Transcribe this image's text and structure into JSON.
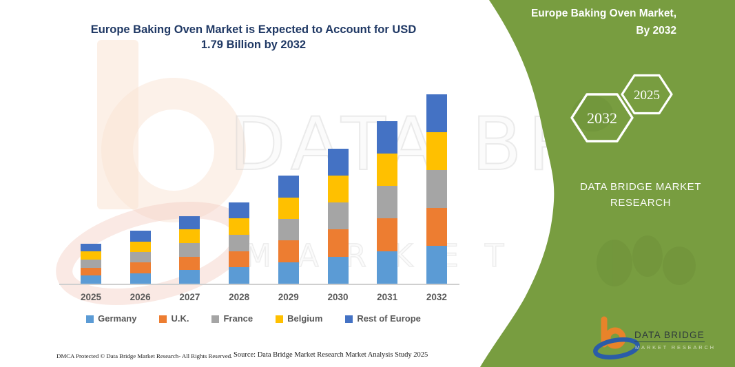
{
  "header": {
    "title_line1": "Europe Baking Oven Market is Expected to Account for USD",
    "title_line2": "1.79 Billion by 2032"
  },
  "watermark": {
    "big_text": "DATA BRIDGE",
    "sub_text": "MARKET RESEARCH"
  },
  "chart_data": {
    "type": "bar",
    "stacked": true,
    "title": "Europe Baking Oven Market is Expected to Account for USD 1.79 Billion by 2032",
    "unit": "USD Billion",
    "categories": [
      "2025",
      "2026",
      "2027",
      "2028",
      "2029",
      "2030",
      "2031",
      "2032"
    ],
    "series": [
      {
        "name": "Germany",
        "color": "#5B9BD5",
        "values": [
          0.076,
          0.1,
          0.128,
          0.154,
          0.204,
          0.256,
          0.308,
          0.358
        ]
      },
      {
        "name": "U.K.",
        "color": "#ED7D31",
        "values": [
          0.076,
          0.1,
          0.128,
          0.154,
          0.204,
          0.256,
          0.308,
          0.358
        ]
      },
      {
        "name": "France",
        "color": "#A5A5A5",
        "values": [
          0.076,
          0.1,
          0.128,
          0.154,
          0.204,
          0.256,
          0.308,
          0.358
        ]
      },
      {
        "name": "Belgium",
        "color": "#FFC000",
        "values": [
          0.076,
          0.1,
          0.128,
          0.154,
          0.204,
          0.256,
          0.308,
          0.358
        ]
      },
      {
        "name": "Rest of Europe",
        "color": "#4472C4",
        "values": [
          0.076,
          0.1,
          0.128,
          0.154,
          0.204,
          0.256,
          0.308,
          0.358
        ]
      }
    ],
    "totals": [
      0.38,
      0.5,
      0.64,
      0.77,
      1.02,
      1.28,
      1.54,
      1.79
    ],
    "ylim": [
      0,
      1.9
    ],
    "grid": false,
    "legend_position": "bottom",
    "axis_color": "#CFCFCF"
  },
  "panel": {
    "green": "#789D40",
    "heading_line1": "Europe Baking Oven Market,",
    "heading_line2": "By 2032",
    "hex_large_label": "2032",
    "hex_small_label": "2025",
    "brand_line1": "DATA BRIDGE MARKET",
    "brand_line2": "RESEARCH",
    "logo_text": "DATA BRIDGE",
    "logo_subtext": "MARKET RESEARCH"
  },
  "footer": {
    "dmca": "DMCA Protected © Data Bridge Market Research-  All Rights Reserved.",
    "source": "Source: Data Bridge Market Research  Market Analysis Study 2025"
  }
}
